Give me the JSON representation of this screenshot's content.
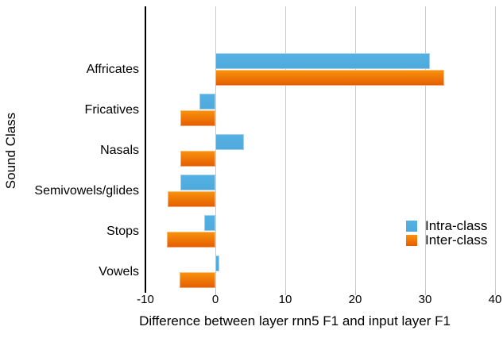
{
  "chart_data": {
    "type": "bar",
    "orientation": "horizontal",
    "title": "",
    "xlabel": "Difference between layer rnn5 F1 and input layer F1",
    "ylabel": "Sound Class",
    "xlim": [
      -10,
      40
    ],
    "xticks": [
      -10,
      0,
      10,
      20,
      30,
      40
    ],
    "grid": true,
    "legend_position": "right-middle",
    "categories": [
      "Affricates",
      "Fricatives",
      "Nasals",
      "Semivowels/glides",
      "Stops",
      "Vowels"
    ],
    "series": [
      {
        "name": "Intra-class",
        "color": "#55B1E3",
        "color2": "#4FA9DC",
        "values": [
          30.7,
          -2.3,
          4.1,
          -5.0,
          -1.6,
          0.6
        ]
      },
      {
        "name": "Inter-class",
        "color": "#F9930E",
        "color2": "#E55C00",
        "values": [
          32.7,
          -5.0,
          -5.0,
          -6.8,
          -6.9,
          -5.1
        ]
      }
    ]
  },
  "colors": {
    "gridline": "#cccccc",
    "axis": "#000000",
    "text": "#000000",
    "background": "#ffffff"
  }
}
